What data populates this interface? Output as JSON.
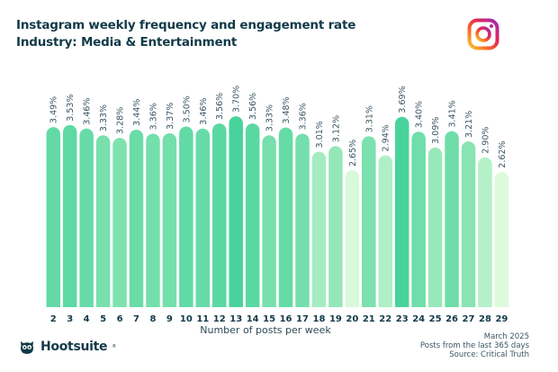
{
  "header": {
    "title": "Instagram weekly frequency and engagement rate",
    "subtitle": "Industry: Media & Entertainment"
  },
  "icons": {
    "platform": "instagram-logo-icon",
    "brand": "hootsuite-owl-icon"
  },
  "footer": {
    "brand_name": "Hootsuite",
    "brand_reg": "®",
    "date": "March 2025",
    "period": "Posts from the last 365 days",
    "source": "Source: Critical Truth"
  },
  "chart_data": {
    "type": "bar",
    "title": "Instagram weekly frequency and engagement rate",
    "subtitle": "Industry: Media & Entertainment",
    "xlabel": "Number of posts per week",
    "ylabel": "",
    "ylim": [
      0,
      3.7
    ],
    "grid": false,
    "legend": "none",
    "value_suffix": "%",
    "categories": [
      "2",
      "3",
      "4",
      "5",
      "6",
      "7",
      "8",
      "9",
      "10",
      "11",
      "12",
      "13",
      "14",
      "15",
      "16",
      "17",
      "18",
      "19",
      "20",
      "21",
      "22",
      "23",
      "24",
      "25",
      "26",
      "27",
      "28",
      "29"
    ],
    "values": [
      3.49,
      3.53,
      3.46,
      3.33,
      3.28,
      3.44,
      3.36,
      3.37,
      3.5,
      3.46,
      3.56,
      3.7,
      3.56,
      3.33,
      3.48,
      3.36,
      3.01,
      3.12,
      2.65,
      3.31,
      2.94,
      3.69,
      3.4,
      3.09,
      3.41,
      3.21,
      2.9,
      2.62
    ],
    "labels": [
      "3.49%",
      "3.53%",
      "3.46%",
      "3.33%",
      "3.28%",
      "3.44%",
      "3.36%",
      "3.37%",
      "3.50%",
      "3.46%",
      "3.56%",
      "3.70%",
      "3.56%",
      "3.33%",
      "3.48%",
      "3.36%",
      "3.01%",
      "3.12%",
      "2.65%",
      "3.31%",
      "2.94%",
      "3.69%",
      "3.40%",
      "3.09%",
      "3.41%",
      "3.21%",
      "2.90%",
      "2.62%"
    ],
    "color_scale": {
      "low": "#dcfbdc",
      "mid": "#8ee6b5",
      "high": "#48d39c"
    }
  }
}
